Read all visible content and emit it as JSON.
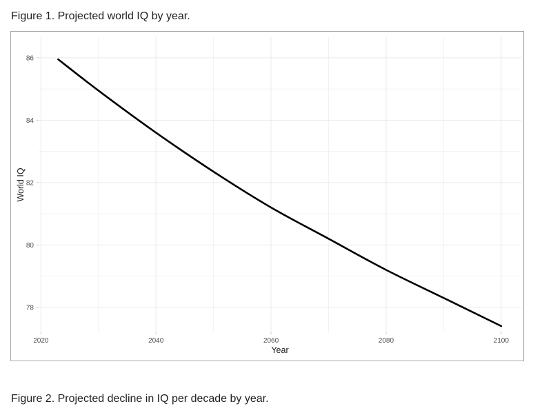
{
  "page": {
    "background": "#ffffff"
  },
  "figure1": {
    "caption": "Figure 1. Projected world IQ by year."
  },
  "figure2": {
    "caption": "Figure 2. Projected decline in IQ per decade by year."
  },
  "chart_data": {
    "type": "line",
    "title": "",
    "xlabel": "Year",
    "ylabel": "World IQ",
    "x": [
      2023,
      2030,
      2040,
      2050,
      2060,
      2070,
      2080,
      2090,
      2100
    ],
    "y": [
      85.95,
      84.95,
      83.6,
      82.35,
      81.2,
      80.2,
      79.2,
      78.3,
      77.4
    ],
    "xticks": [
      2020,
      2040,
      2060,
      2080,
      2100
    ],
    "yticks": [
      78,
      80,
      82,
      84,
      86
    ],
    "x_minor": [
      2030,
      2050,
      2070,
      2090
    ],
    "y_minor": [
      79,
      81,
      83,
      85
    ],
    "xlim": [
      2019.6,
      2103.5
    ],
    "ylim": [
      77.2,
      86.66
    ],
    "grid": true,
    "legend_position": "none",
    "line_color": "#000000",
    "line_width": 2.6,
    "major_grid_color": "#eae8ee",
    "minor_grid_color": "#f3f1f6",
    "tick_color": "#c9c9c9",
    "tick_label_color": "#4d4d4d",
    "axis_title_color": "#1a1a1a",
    "border_color": "#a6a6a6",
    "panel_background": "#ffffff"
  }
}
